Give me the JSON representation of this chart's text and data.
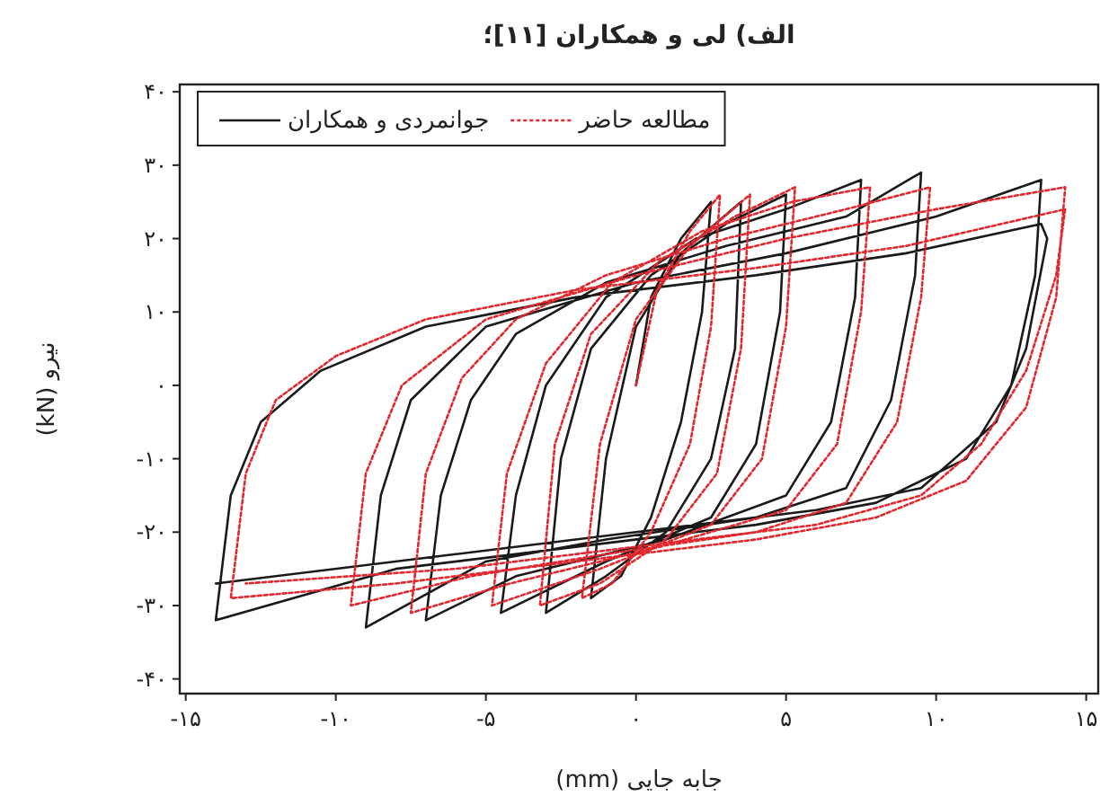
{
  "chart_data": {
    "type": "line",
    "title": "الف) لی و همکاران [۱۱]؛",
    "xlabel": "جابه جایی (mm)",
    "ylabel": "نیرو (kN)",
    "xlim": [
      -15.2,
      15.4
    ],
    "ylim": [
      -42,
      41
    ],
    "xticks": [
      {
        "value": -15,
        "label": "-۱۵"
      },
      {
        "value": -10,
        "label": "-۱۰"
      },
      {
        "value": -5,
        "label": "-۵"
      },
      {
        "value": 0,
        "label": "۰"
      },
      {
        "value": 5,
        "label": "۵"
      },
      {
        "value": 10,
        "label": "۱۰"
      },
      {
        "value": 15,
        "label": "۱۵"
      }
    ],
    "yticks": [
      {
        "value": -40,
        "label": "-۴۰"
      },
      {
        "value": -30,
        "label": "-۳۰"
      },
      {
        "value": -20,
        "label": "-۲۰"
      },
      {
        "value": -10,
        "label": "-۱۰"
      },
      {
        "value": 0,
        "label": "۰"
      },
      {
        "value": 10,
        "label": "۱۰"
      },
      {
        "value": 20,
        "label": "۲۰"
      },
      {
        "value": 30,
        "label": "۳۰"
      },
      {
        "value": 40,
        "label": "۴۰"
      }
    ],
    "legend": "top left",
    "series": [
      {
        "name": "مطالعه حاضر",
        "color": "#e0282e",
        "line_style": "dashed",
        "x": [
          0,
          0.7,
          1.8,
          2.8,
          2.5,
          1.8,
          0.5,
          -0.8,
          -1.8,
          -1.2,
          0,
          1.8,
          3.8,
          3.5,
          2.7,
          1,
          -1.2,
          -3.2,
          -2.7,
          -1.5,
          0.8,
          3.3,
          5.3,
          5,
          4.2,
          2.5,
          -1.2,
          -4.8,
          -4.3,
          -3,
          -0.8,
          2.2,
          5.2,
          7.8,
          7.5,
          6.7,
          5,
          0.8,
          -4.2,
          -7.5,
          -7,
          -5.8,
          -4,
          -1,
          3,
          7,
          9.8,
          9.5,
          8.7,
          7,
          4,
          -1,
          -5.5,
          -9.5,
          -9,
          -7.8,
          -5,
          0,
          5,
          10,
          14.3,
          14,
          13,
          11,
          8,
          4,
          -2,
          -8,
          -13.5,
          -13,
          -12,
          -10,
          -7,
          -2,
          4,
          9,
          14.3,
          14,
          13,
          11.5,
          9.5,
          6,
          0,
          -6,
          -13
        ],
        "values": [
          0,
          13,
          21,
          26,
          8,
          -8,
          -20,
          -27,
          -29,
          -8,
          9,
          19,
          26,
          5,
          -12,
          -21,
          -27,
          -30,
          -8,
          7,
          17,
          23,
          27,
          8,
          -10,
          -19,
          -25,
          -30,
          -12,
          3,
          14,
          21,
          25,
          27,
          10,
          -8,
          -17,
          -22,
          -27,
          -31,
          -12,
          1,
          9,
          15,
          20,
          24,
          27,
          12,
          -5,
          -16,
          -20,
          -23,
          -26,
          -30,
          -12,
          0,
          9,
          15,
          20,
          24,
          27,
          12,
          -3,
          -13,
          -18,
          -21,
          -24,
          -27,
          -29,
          -12,
          -2,
          4,
          9,
          13,
          16,
          19,
          24,
          15,
          2,
          -8,
          -15,
          -19,
          -22,
          -25,
          -27
        ]
      },
      {
        "name": "جوانمردی و همکاران",
        "color": "#1a1a1a",
        "line_style": "solid",
        "x": [
          0,
          0.5,
          1.5,
          2.5,
          2.2,
          1.5,
          0.5,
          -0.5,
          -1.5,
          -1,
          0,
          1.5,
          3.5,
          3.3,
          2.5,
          1,
          -1,
          -3,
          -2.5,
          -1.5,
          0.5,
          3,
          5,
          4.8,
          4,
          2.5,
          -1,
          -4.5,
          -4,
          -3,
          -1,
          2,
          5,
          7.5,
          7.3,
          6.5,
          5,
          1,
          -4,
          -7,
          -6.5,
          -5.5,
          -4,
          -1,
          3,
          7,
          9.5,
          9.3,
          8.5,
          7,
          4,
          -1,
          -5,
          -9,
          -8.5,
          -7.5,
          -5,
          0,
          5,
          10,
          13.5,
          13.3,
          12.5,
          11,
          8,
          4,
          -2,
          -8,
          -14,
          -13.5,
          -12.5,
          -10.5,
          -7,
          -2,
          4,
          9,
          13.5,
          13.7,
          13,
          12,
          9.5,
          6,
          0,
          -6,
          -14
        ],
        "values": [
          0,
          12,
          20,
          25,
          10,
          -5,
          -18,
          -26,
          -29,
          -10,
          8,
          18,
          25,
          5,
          -10,
          -20,
          -26,
          -31,
          -10,
          5,
          15,
          22,
          26,
          10,
          -8,
          -18,
          -24,
          -31,
          -15,
          0,
          12,
          20,
          24,
          28,
          12,
          -5,
          -15,
          -21,
          -26,
          -32,
          -15,
          -2,
          7,
          14,
          19,
          23,
          29,
          15,
          -2,
          -14,
          -18,
          -21,
          -24,
          -33,
          -15,
          -2,
          8,
          14,
          18,
          23,
          28,
          15,
          0,
          -10,
          -16,
          -19,
          -22,
          -25,
          -32,
          -15,
          -5,
          2,
          8,
          12,
          15,
          18,
          22,
          20,
          5,
          -5,
          -14,
          -17,
          -20,
          -23,
          -27
        ]
      }
    ]
  }
}
